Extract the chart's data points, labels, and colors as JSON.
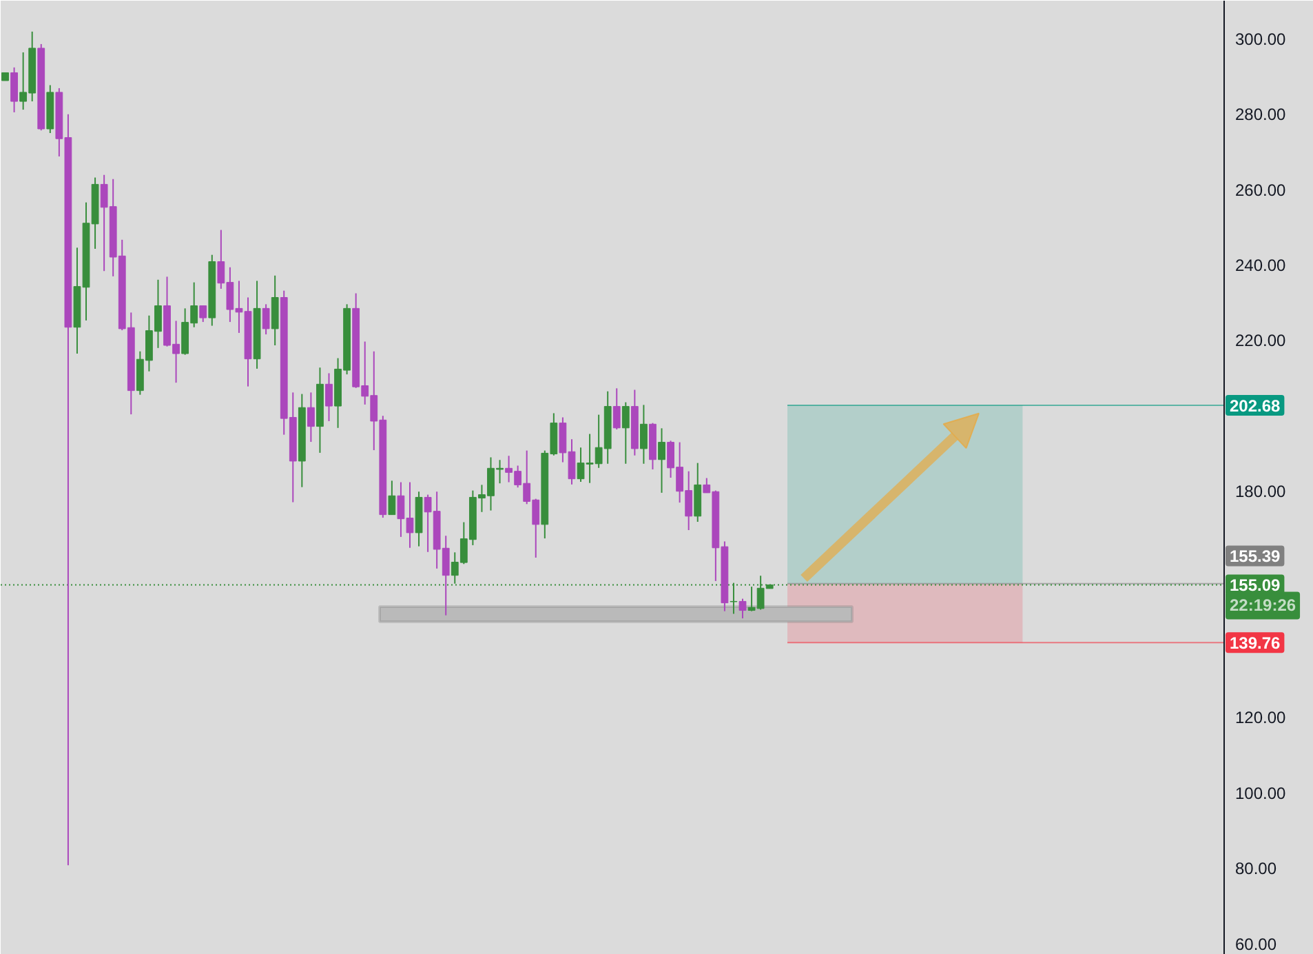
{
  "chart_data": {
    "type": "candlestick",
    "categories": [
      null,
      null,
      null,
      null,
      null,
      null,
      null,
      null,
      null,
      null,
      null,
      null,
      null,
      null,
      null,
      null,
      null,
      null,
      null,
      null,
      null,
      null,
      null,
      null,
      null,
      null,
      null,
      null,
      null,
      null,
      null,
      null,
      null,
      null,
      null,
      null,
      null,
      null,
      null,
      null,
      null,
      null,
      null,
      null,
      null,
      null,
      null,
      null,
      null,
      null,
      null,
      null,
      null,
      null,
      null,
      null,
      null,
      null,
      null,
      null,
      null,
      null,
      null,
      null,
      null,
      null,
      null,
      null,
      null,
      null,
      null,
      null,
      null,
      null,
      null,
      null,
      null,
      null,
      null,
      null,
      null,
      null,
      null,
      null,
      null,
      null,
      null,
      null,
      null,
      null,
      null,
      null,
      null,
      null,
      null,
      null,
      null,
      null,
      null,
      null,
      null,
      null,
      null,
      null,
      null,
      null,
      null,
      null,
      null,
      null,
      null,
      null,
      null,
      null,
      null,
      null,
      null,
      null,
      null,
      null,
      null,
      null,
      null,
      null,
      null,
      null,
      null,
      null,
      null,
      null,
      null,
      null,
      null,
      null,
      null,
      null,
      null,
      null,
      null,
      null,
      null,
      null,
      null,
      null,
      null,
      null
    ],
    "ohlc": [
      [
        288.8,
        290.9,
        288.8,
        290.9
      ],
      [
        290.9,
        292.3,
        280.4,
        283.3
      ],
      [
        283.3,
        296.3,
        281.1,
        285.7
      ],
      [
        285.5,
        301.8,
        283.3,
        297.4
      ],
      [
        297.4,
        298.5,
        275.6,
        276.0
      ],
      [
        276.0,
        287.6,
        274.9,
        285.7
      ],
      [
        285.7,
        286.8,
        268.7,
        273.4
      ],
      [
        273.7,
        279.9,
        80.7,
        223.4
      ],
      [
        223.4,
        244.5,
        216.4,
        234.2
      ],
      [
        234.0,
        256.5,
        225.2,
        251.0
      ],
      [
        250.8,
        263.1,
        244.2,
        261.3
      ],
      [
        261.3,
        263.8,
        238.3,
        255.2
      ],
      [
        255.4,
        262.7,
        236.9,
        242.0
      ],
      [
        242.3,
        246.6,
        222.6,
        223.0
      ],
      [
        223.3,
        227.3,
        200.3,
        206.6
      ],
      [
        206.6,
        217.0,
        205.5,
        214.9
      ],
      [
        214.6,
        226.5,
        211.7,
        222.5
      ],
      [
        222.3,
        236.0,
        217.9,
        229.1
      ],
      [
        229.1,
        236.8,
        218.3,
        218.6
      ],
      [
        218.9,
        225.1,
        208.7,
        216.4
      ],
      [
        216.4,
        228.4,
        216.1,
        224.7
      ],
      [
        224.5,
        235.3,
        223.4,
        229.1
      ],
      [
        229.1,
        229.1,
        224.8,
        225.9
      ],
      [
        225.9,
        242.6,
        223.8,
        240.8
      ],
      [
        240.8,
        249.2,
        233.6,
        235.1
      ],
      [
        235.3,
        239.3,
        224.8,
        228.1
      ],
      [
        228.4,
        235.7,
        221.9,
        227.4
      ],
      [
        227.6,
        231.3,
        207.7,
        215.0
      ],
      [
        215.0,
        235.7,
        212.4,
        228.4
      ],
      [
        228.4,
        229.5,
        221.5,
        223.0
      ],
      [
        223.0,
        237.1,
        218.6,
        231.3
      ],
      [
        231.3,
        233.1,
        194.9,
        199.2
      ],
      [
        199.5,
        206.1,
        177.0,
        187.9
      ],
      [
        187.9,
        205.7,
        181.0,
        202.1
      ],
      [
        202.1,
        206.1,
        193.0,
        197.1
      ],
      [
        197.1,
        212.7,
        190.1,
        208.3
      ],
      [
        208.3,
        211.2,
        198.5,
        202.5
      ],
      [
        202.5,
        215.2,
        196.7,
        212.3
      ],
      [
        212.0,
        229.5,
        210.9,
        228.4
      ],
      [
        228.4,
        232.4,
        207.3,
        207.6
      ],
      [
        207.9,
        219.6,
        202.9,
        205.1
      ],
      [
        205.3,
        217.0,
        190.8,
        198.5
      ],
      [
        198.8,
        199.9,
        172.9,
        173.7
      ],
      [
        173.7,
        182.7,
        173.7,
        178.7
      ],
      [
        178.7,
        182.3,
        167.8,
        172.6
      ],
      [
        172.8,
        182.3,
        164.9,
        168.9
      ],
      [
        168.9,
        179.8,
        165.3,
        178.3
      ],
      [
        178.3,
        179.0,
        163.8,
        174.4
      ],
      [
        174.6,
        179.8,
        159.4,
        164.5
      ],
      [
        164.8,
        168.1,
        147.0,
        157.6
      ],
      [
        157.6,
        163.7,
        155.4,
        161.1
      ],
      [
        161.0,
        171.7,
        160.6,
        167.3
      ],
      [
        167.1,
        180.1,
        165.6,
        178.3
      ],
      [
        178.1,
        181.6,
        174.4,
        179.0
      ],
      [
        178.7,
        188.9,
        174.8,
        186.0
      ],
      [
        185.7,
        188.2,
        182.0,
        186.0
      ],
      [
        186.0,
        189.3,
        182.3,
        184.9
      ],
      [
        185.2,
        186.7,
        180.9,
        181.6
      ],
      [
        182.0,
        190.7,
        176.5,
        177.2
      ],
      [
        177.6,
        177.9,
        162.3,
        171.1
      ],
      [
        171.1,
        190.7,
        167.4,
        190.0
      ],
      [
        189.8,
        200.6,
        189.4,
        198.0
      ],
      [
        198.0,
        199.5,
        187.6,
        190.1
      ],
      [
        190.4,
        193.7,
        181.7,
        183.2
      ],
      [
        183.2,
        191.5,
        182.4,
        187.4
      ],
      [
        187.1,
        195.1,
        182.1,
        187.4
      ],
      [
        187.2,
        200.2,
        186.1,
        191.5
      ],
      [
        191.2,
        206.4,
        187.2,
        202.4
      ],
      [
        202.4,
        207.2,
        196.3,
        196.7
      ],
      [
        196.7,
        203.5,
        187.2,
        202.4
      ],
      [
        202.4,
        206.8,
        189.4,
        191.2
      ],
      [
        191.2,
        202.8,
        187.2,
        197.7
      ],
      [
        197.7,
        198.0,
        185.7,
        188.3
      ],
      [
        188.3,
        196.6,
        179.5,
        192.9
      ],
      [
        192.9,
        193.3,
        183.5,
        186.1
      ],
      [
        186.3,
        192.9,
        176.9,
        179.9
      ],
      [
        180.1,
        185.2,
        169.6,
        173.3
      ],
      [
        173.3,
        187.4,
        171.8,
        181.6
      ],
      [
        181.6,
        183.4,
        179.5,
        179.5
      ],
      [
        179.8,
        180.1,
        156.1,
        164.9
      ],
      [
        165.2,
        166.6,
        148.1,
        150.3
      ],
      [
        150.6,
        155.6,
        147.4,
        150.7
      ],
      [
        150.7,
        151.4,
        146.2,
        148.3
      ],
      [
        148.3,
        154.6,
        148.1,
        149.1
      ],
      [
        148.8,
        157.5,
        148.5,
        154.2
      ],
      [
        154.1,
        155.1,
        154.1,
        155.09
      ],
      null,
      null,
      null,
      null,
      null,
      null,
      null,
      null,
      null,
      null,
      null,
      null,
      null,
      null,
      null,
      null,
      null,
      null,
      null,
      null,
      null,
      null,
      null,
      null,
      null,
      null,
      null,
      null,
      null,
      null,
      null,
      null,
      null,
      null,
      null,
      null,
      null,
      null,
      null,
      null,
      null,
      null,
      null,
      null,
      null,
      null,
      null,
      null,
      null,
      null,
      null,
      null,
      null,
      null,
      null,
      null,
      null,
      null,
      null,
      null
    ],
    "colors": [
      "#388e3c",
      "#ab47bc",
      "#388e3c",
      "#388e3c",
      "#ab47bc",
      "#388e3c",
      "#ab47bc",
      "#ab47bc",
      "#388e3c",
      "#388e3c",
      "#388e3c",
      "#ab47bc",
      "#ab47bc",
      "#ab47bc",
      "#ab47bc",
      "#388e3c",
      "#388e3c",
      "#388e3c",
      "#ab47bc",
      "#ab47bc",
      "#388e3c",
      "#388e3c",
      "#ab47bc",
      "#388e3c",
      "#ab47bc",
      "#ab47bc",
      "#ab47bc",
      "#ab47bc",
      "#388e3c",
      "#ab47bc",
      "#388e3c",
      "#ab47bc",
      "#ab47bc",
      "#388e3c",
      "#ab47bc",
      "#388e3c",
      "#ab47bc",
      "#388e3c",
      "#388e3c",
      "#ab47bc",
      "#ab47bc",
      "#ab47bc",
      "#ab47bc",
      "#388e3c",
      "#ab47bc",
      "#ab47bc",
      "#388e3c",
      "#ab47bc",
      "#ab47bc",
      "#ab47bc",
      "#388e3c",
      "#388e3c",
      "#388e3c",
      "#388e3c",
      "#388e3c",
      "#388e3c",
      "#ab47bc",
      "#ab47bc",
      "#ab47bc",
      "#ab47bc",
      "#388e3c",
      "#388e3c",
      "#ab47bc",
      "#ab47bc",
      "#388e3c",
      "#388e3c",
      "#388e3c",
      "#388e3c",
      "#ab47bc",
      "#388e3c",
      "#ab47bc",
      "#388e3c",
      "#ab47bc",
      "#388e3c",
      "#ab47bc",
      "#ab47bc",
      "#ab47bc",
      "#388e3c",
      "#ab47bc",
      "#ab47bc",
      "#ab47bc",
      "#388e3c",
      "#ab47bc",
      "#388e3c",
      "#388e3c",
      "#388e3c",
      null,
      null,
      null,
      null,
      null,
      null,
      null,
      null,
      null,
      null,
      null,
      null,
      null,
      null,
      null,
      null,
      null,
      null,
      null,
      null,
      null,
      null,
      null,
      null,
      null,
      null,
      null,
      null,
      null,
      null,
      null,
      null,
      null,
      null,
      null,
      null,
      null,
      null,
      null,
      null,
      null,
      null,
      null,
      null,
      null,
      null,
      null,
      null,
      null,
      null,
      null,
      null,
      null,
      null,
      null,
      null,
      null,
      null,
      null,
      null
    ],
    "ylim": [
      57,
      310
    ],
    "yticks": [
      {
        "value": 60,
        "label": "60.00"
      },
      {
        "value": 80,
        "label": "80.00"
      },
      {
        "value": 100,
        "label": "100.00"
      },
      {
        "value": 120,
        "label": "120.00"
      },
      {
        "value": 180,
        "label": "180.00"
      },
      {
        "value": 220,
        "label": "220.00"
      },
      {
        "value": 240,
        "label": "240.00"
      },
      {
        "value": 260,
        "label": "260.00"
      },
      {
        "value": 280,
        "label": "280.00"
      },
      {
        "value": 300,
        "label": "300.00"
      }
    ],
    "tick_labels": "y",
    "bands": [
      {
        "axis": "y",
        "from": 155.39,
        "to": 202.68,
        "color": "#b3cfca"
      },
      {
        "axis": "y",
        "from": 139.76,
        "to": 155.39,
        "color": "#dfbabe"
      },
      {
        "axis": "y",
        "from": 145.3,
        "to": 149.3,
        "color": "#bababa"
      }
    ],
    "ref_lines": [
      {
        "axis": "y",
        "value": 202.68,
        "label": "202.68",
        "color": "#089981"
      },
      {
        "axis": "y",
        "value": 155.39,
        "label": "155.39",
        "color": "#808080"
      },
      {
        "axis": "y",
        "value": 155.09,
        "label": "155.09",
        "color": "#388e3c",
        "line_style": "dotted"
      },
      {
        "axis": "y",
        "value": 139.76,
        "label": "139.76",
        "color": "#f23645"
      }
    ],
    "annotations": [
      "22:19:26"
    ]
  }
}
